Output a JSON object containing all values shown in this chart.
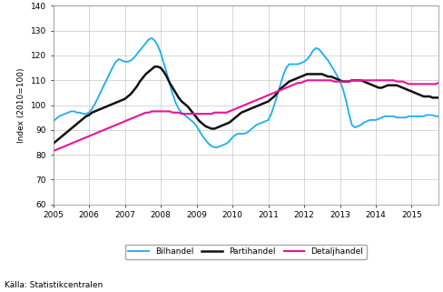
{
  "title": "",
  "ylabel": "Index (2010=100)",
  "source": "Källa: Statistikcentralen",
  "ylim": [
    60,
    140
  ],
  "yticks": [
    60,
    70,
    80,
    90,
    100,
    110,
    120,
    130,
    140
  ],
  "xlim": [
    2005.0,
    2015.75
  ],
  "xticks": [
    2005,
    2006,
    2007,
    2008,
    2009,
    2010,
    2011,
    2012,
    2013,
    2014,
    2015
  ],
  "line_colors": {
    "bilhandel": "#1AAFEF",
    "partihandel": "#111111",
    "detaljhandel": "#EE1199"
  },
  "line_widths": {
    "bilhandel": 1.3,
    "partihandel": 1.8,
    "detaljhandel": 1.5
  },
  "legend_labels": [
    "Bilhandel",
    "Partihandel",
    "Detaljhandel"
  ],
  "bilhandel": [
    93.5,
    94.5,
    95.5,
    96.0,
    96.5,
    97.0,
    97.5,
    97.5,
    97.0,
    97.0,
    96.5,
    96.5,
    97.0,
    98.5,
    100.5,
    103.0,
    105.5,
    108.0,
    110.5,
    113.0,
    115.5,
    117.5,
    118.5,
    118.0,
    117.5,
    117.5,
    118.0,
    119.0,
    120.5,
    122.0,
    123.5,
    125.0,
    126.5,
    127.0,
    126.0,
    124.0,
    121.0,
    117.0,
    113.0,
    108.5,
    104.5,
    101.0,
    98.5,
    97.0,
    96.0,
    95.0,
    94.0,
    93.0,
    91.5,
    89.5,
    87.5,
    86.0,
    84.5,
    83.5,
    83.0,
    83.0,
    83.5,
    84.0,
    84.5,
    85.5,
    87.0,
    88.0,
    88.5,
    88.5,
    88.5,
    89.0,
    90.0,
    91.0,
    92.0,
    92.5,
    93.0,
    93.5,
    94.0,
    96.5,
    100.0,
    104.0,
    108.0,
    112.0,
    115.0,
    116.5,
    116.5,
    116.5,
    116.5,
    117.0,
    117.5,
    118.5,
    120.0,
    122.0,
    123.0,
    122.5,
    121.0,
    119.5,
    118.0,
    116.0,
    114.0,
    112.0,
    109.5,
    106.5,
    102.0,
    96.5,
    92.0,
    91.0,
    91.5,
    92.0,
    93.0,
    93.5,
    94.0,
    94.0,
    94.0,
    94.5,
    95.0,
    95.5,
    95.5,
    95.5,
    95.5,
    95.0,
    95.0,
    95.0,
    95.0,
    95.5,
    95.5,
    95.5,
    95.5,
    95.5,
    95.5,
    96.0,
    96.0,
    96.0,
    95.5,
    95.5,
    96.0,
    96.5
  ],
  "partihandel": [
    84.5,
    85.5,
    86.5,
    87.5,
    88.5,
    89.5,
    90.5,
    91.5,
    92.5,
    93.5,
    94.5,
    95.5,
    96.0,
    97.0,
    97.5,
    98.0,
    98.5,
    99.0,
    99.5,
    100.0,
    100.5,
    101.0,
    101.5,
    102.0,
    102.5,
    103.5,
    104.5,
    106.0,
    107.5,
    109.5,
    111.0,
    112.5,
    113.5,
    114.5,
    115.5,
    115.5,
    115.0,
    113.5,
    111.5,
    109.0,
    107.0,
    105.0,
    103.0,
    101.5,
    100.5,
    99.5,
    98.0,
    96.5,
    95.0,
    93.5,
    92.5,
    91.5,
    91.0,
    90.5,
    90.5,
    91.0,
    91.5,
    92.0,
    92.5,
    93.0,
    94.0,
    95.0,
    96.0,
    97.0,
    97.5,
    98.0,
    98.5,
    99.0,
    99.5,
    100.0,
    100.5,
    101.0,
    101.5,
    102.5,
    103.5,
    105.0,
    106.5,
    107.5,
    108.5,
    109.5,
    110.0,
    110.5,
    111.0,
    111.5,
    112.0,
    112.5,
    112.5,
    112.5,
    112.5,
    112.5,
    112.5,
    112.0,
    111.5,
    111.5,
    111.0,
    110.5,
    110.0,
    109.5,
    109.5,
    109.5,
    110.0,
    110.0,
    110.0,
    110.0,
    109.5,
    109.0,
    108.5,
    108.0,
    107.5,
    107.0,
    107.0,
    107.5,
    108.0,
    108.0,
    108.0,
    108.0,
    107.5,
    107.0,
    106.5,
    106.0,
    105.5,
    105.0,
    104.5,
    104.0,
    103.5,
    103.5,
    103.5,
    103.0,
    103.0,
    103.0,
    103.5,
    103.5
  ],
  "detaljhandel": [
    81.5,
    82.0,
    82.5,
    83.0,
    83.5,
    84.0,
    84.5,
    85.0,
    85.5,
    86.0,
    86.5,
    87.0,
    87.5,
    88.0,
    88.5,
    89.0,
    89.5,
    90.0,
    90.5,
    91.0,
    91.5,
    92.0,
    92.5,
    93.0,
    93.5,
    94.0,
    94.5,
    95.0,
    95.5,
    96.0,
    96.5,
    97.0,
    97.0,
    97.5,
    97.5,
    97.5,
    97.5,
    97.5,
    97.5,
    97.5,
    97.0,
    97.0,
    97.0,
    96.5,
    96.5,
    96.5,
    96.5,
    96.5,
    96.5,
    96.5,
    96.5,
    96.5,
    96.5,
    96.5,
    97.0,
    97.0,
    97.0,
    97.0,
    97.0,
    97.5,
    98.0,
    98.5,
    99.0,
    99.5,
    100.0,
    100.5,
    101.0,
    101.5,
    102.0,
    102.5,
    103.0,
    103.5,
    104.0,
    104.5,
    105.0,
    105.5,
    106.0,
    106.5,
    107.0,
    107.5,
    108.0,
    108.5,
    109.0,
    109.0,
    109.5,
    110.0,
    110.0,
    110.0,
    110.0,
    110.0,
    110.0,
    110.0,
    110.0,
    110.0,
    109.5,
    109.5,
    109.5,
    109.5,
    109.5,
    109.5,
    110.0,
    110.0,
    110.0,
    110.0,
    110.0,
    110.0,
    110.0,
    110.0,
    110.0,
    110.0,
    110.0,
    110.0,
    110.0,
    110.0,
    110.0,
    109.5,
    109.5,
    109.5,
    109.0,
    108.5,
    108.5,
    108.5,
    108.5,
    108.5,
    108.5,
    108.5,
    108.5,
    108.5,
    108.5,
    109.0,
    109.0,
    109.0
  ],
  "background_color": "#ffffff",
  "grid_color": "#c8c8c8"
}
